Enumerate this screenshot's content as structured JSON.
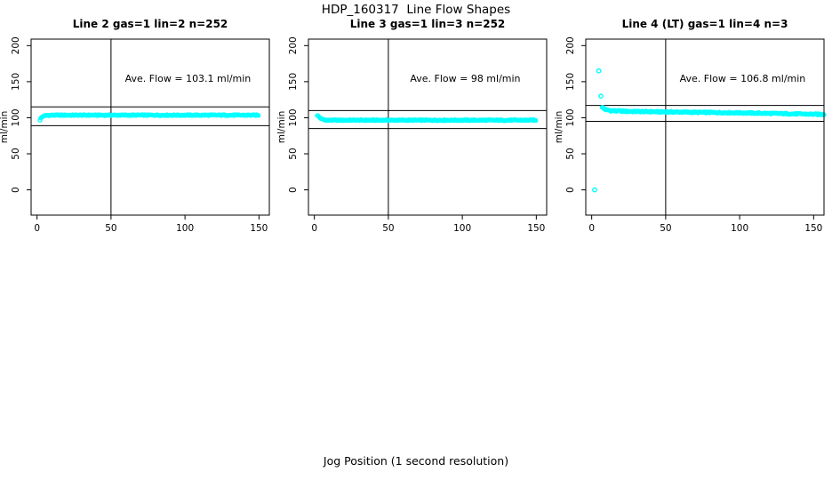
{
  "figure": {
    "title": "HDP_160317  Line Flow Shapes",
    "xlabel": "Jog Position (1 second resolution)",
    "background": "#ffffff",
    "axis_color": "#000000",
    "point_color": "#00FFFF"
  },
  "chart_data": [
    {
      "type": "scatter",
      "title": "Line 2 gas=1 lin=2 n=252",
      "annotation": "Ave. Flow =  103.1  ml/min",
      "ave_flow_ml_min": 103.1,
      "n_points": 252,
      "ylabel": "ml/min",
      "xlim": [
        -4,
        157
      ],
      "ylim": [
        -35,
        209
      ],
      "x_ticks": [
        0,
        50,
        100,
        150
      ],
      "y_ticks": [
        0,
        50,
        100,
        150,
        200
      ],
      "vline_x": 50,
      "hlines": [
        115,
        89
      ],
      "grid": false,
      "band": {
        "path": [
          [
            2,
            97
          ],
          [
            3,
            100.5
          ],
          [
            4,
            102
          ],
          [
            6,
            103.2
          ],
          [
            10,
            103.6
          ],
          [
            150,
            103.6
          ]
        ],
        "sample_step": 0.6,
        "jitter": 0.7
      },
      "outliers": []
    },
    {
      "type": "scatter",
      "title": "Line 3 gas=1 lin=3 n=252",
      "annotation": "Ave. Flow =  98  ml/min",
      "ave_flow_ml_min": 98,
      "n_points": 252,
      "ylabel": "ml/min",
      "xlim": [
        -4,
        157
      ],
      "ylim": [
        -35,
        209
      ],
      "x_ticks": [
        0,
        50,
        100,
        150
      ],
      "y_ticks": [
        0,
        50,
        100,
        150,
        200
      ],
      "vline_x": 50,
      "hlines": [
        110,
        85
      ],
      "grid": false,
      "band": {
        "path": [
          [
            2,
            103.5
          ],
          [
            4,
            99.5
          ],
          [
            6,
            97.3
          ],
          [
            9,
            96.6
          ],
          [
            150,
            96.6
          ]
        ],
        "sample_step": 0.6,
        "jitter": 0.7
      },
      "outliers": []
    },
    {
      "type": "scatter",
      "title": "Line 4 (LT) gas=1 lin=4 n=3",
      "annotation": "Ave. Flow =  106.8  ml/min",
      "ave_flow_ml_min": 106.8,
      "n_points": 3,
      "ylabel": "ml/min",
      "xlim": [
        -4,
        157
      ],
      "ylim": [
        -35,
        209
      ],
      "x_ticks": [
        0,
        50,
        100,
        150
      ],
      "y_ticks": [
        0,
        50,
        100,
        150,
        200
      ],
      "vline_x": 50,
      "hlines": [
        117,
        95
      ],
      "grid": false,
      "band": {
        "path": [
          [
            7,
            115
          ],
          [
            9,
            111.5
          ],
          [
            13,
            109.8
          ],
          [
            25,
            108.8
          ],
          [
            60,
            107.8
          ],
          [
            100,
            106.8
          ],
          [
            157,
            104.6
          ]
        ],
        "sample_step": 0.6,
        "jitter": 0.9
      },
      "outliers": [
        [
          2,
          0
        ],
        [
          4.8,
          165
        ],
        [
          6.2,
          130
        ]
      ]
    }
  ]
}
